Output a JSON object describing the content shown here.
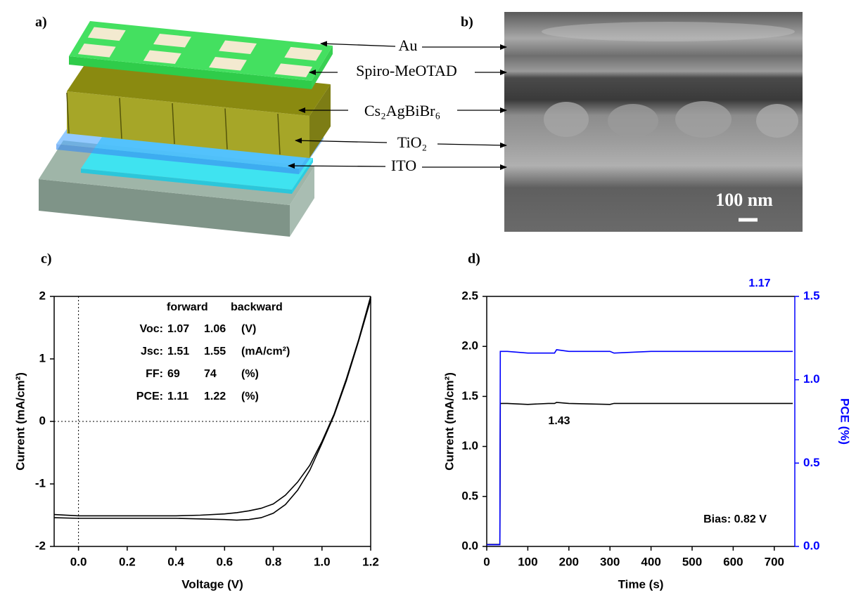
{
  "panels": {
    "a": {
      "label": "a)"
    },
    "b": {
      "label": "b)",
      "scale_bar": "100 nm"
    }
  },
  "layers": [
    "Au",
    "Spiro-MeOTAD",
    "Cs₂AgBiBr₆",
    "TiO₂",
    "ITO"
  ],
  "chart_data": [
    {
      "type": "line",
      "panel_label": "c)",
      "x_label": "Voltage (V)",
      "y_label": "Current (mA/cm²)",
      "xlim": [
        -0.1,
        1.2
      ],
      "ylim": [
        -2,
        2
      ],
      "xticks": [
        {
          "value": 0,
          "label": "0.0"
        },
        0.2,
        0.4,
        0.6,
        0.8,
        {
          "value": 1,
          "label": "1.0"
        },
        1.2
      ],
      "yticks": [
        -2,
        -1,
        0,
        1,
        2
      ],
      "zero_lines": true,
      "x": [
        -0.1,
        0,
        0.1,
        0.2,
        0.3,
        0.4,
        0.5,
        0.6,
        0.65,
        0.7,
        0.75,
        0.8,
        0.85,
        0.9,
        0.95,
        1.0,
        1.05,
        1.1,
        1.15,
        1.2
      ],
      "series": [
        {
          "color": "#000000",
          "values": [
            -1.54,
            -1.55,
            -1.55,
            -1.55,
            -1.55,
            -1.55,
            -1.56,
            -1.57,
            -1.58,
            -1.57,
            -1.54,
            -1.47,
            -1.33,
            -1.1,
            -0.78,
            -0.35,
            0.1,
            0.65,
            1.28,
            1.95
          ]
        },
        {
          "color": "#000000",
          "values": [
            -1.49,
            -1.51,
            -1.51,
            -1.51,
            -1.51,
            -1.51,
            -1.5,
            -1.48,
            -1.46,
            -1.43,
            -1.39,
            -1.32,
            -1.18,
            -0.97,
            -0.7,
            -0.32,
            0.12,
            0.68,
            1.3,
            2.0
          ]
        }
      ],
      "annotation_table": {
        "header": [
          "forward",
          "backward"
        ],
        "rows": [
          [
            "Voc:",
            "1.07",
            "1.06",
            "(V)"
          ],
          [
            "Jsc:",
            "1.51",
            "1.55",
            "(mA/cm²)"
          ],
          [
            "FF:",
            "69",
            "74",
            "(%)"
          ],
          [
            "PCE:",
            "1.11",
            "1.22",
            "(%)"
          ]
        ]
      }
    },
    {
      "type": "line",
      "panel_label": "d)",
      "x_label": "Time (s)",
      "y_label": "Current (mA/cm²)",
      "y2_label": "PCE (%)",
      "xlim": [
        0,
        750
      ],
      "ylim": [
        0,
        2.5
      ],
      "y2lim": [
        0,
        1.5
      ],
      "xticks": [
        0,
        100,
        200,
        300,
        400,
        500,
        600,
        700
      ],
      "yticks": [
        {
          "value": 0,
          "label": "0.0"
        },
        0.5,
        {
          "value": 1,
          "label": "1.0"
        },
        1.5,
        {
          "value": 2,
          "label": "2.0"
        },
        2.5
      ],
      "y2ticks": [
        {
          "value": 0,
          "label": "0.0"
        },
        0.5,
        {
          "value": 1,
          "label": "1.0"
        },
        1.5
      ],
      "x": [
        0,
        32,
        33,
        50,
        100,
        150,
        165,
        170,
        200,
        300,
        310,
        400,
        500,
        600,
        700,
        745
      ],
      "series": [
        {
          "color": "#000000",
          "values": [
            0.02,
            0.02,
            1.43,
            1.43,
            1.42,
            1.43,
            1.43,
            1.44,
            1.43,
            1.42,
            1.43,
            1.43,
            1.43,
            1.43,
            1.43,
            1.43
          ]
        },
        {
          "color": "#0000ff",
          "axis": "y2",
          "values": [
            0.01,
            0.01,
            1.17,
            1.17,
            1.16,
            1.16,
            1.16,
            1.18,
            1.17,
            1.17,
            1.16,
            1.17,
            1.17,
            1.17,
            1.17,
            1.17
          ]
        }
      ],
      "annotations": [
        {
          "text": "1.17",
          "color": "#0000ff"
        },
        {
          "text": "1.43",
          "color": "#000000"
        },
        {
          "text": "Bias: 0.82 V",
          "color": "#000000"
        }
      ]
    }
  ]
}
